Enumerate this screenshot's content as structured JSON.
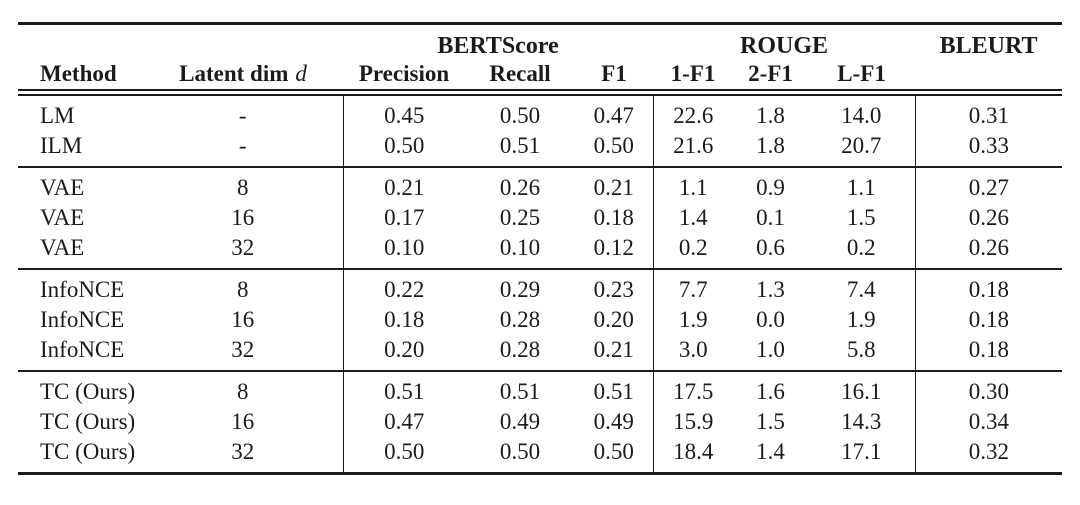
{
  "page": {
    "background": "#ffffff",
    "text_color": "#1b1b1b",
    "rule_color": "#1b1b1b"
  },
  "table": {
    "group_headers": [
      {
        "label": "",
        "span": 2
      },
      {
        "label": "BERTScore",
        "span": 3
      },
      {
        "label": "ROUGE",
        "span": 3
      },
      {
        "label": "BLEURT",
        "span": 1
      }
    ],
    "columns": [
      {
        "label": "Method"
      },
      {
        "label": "Latent dim",
        "var": "d"
      },
      {
        "label": "Precision"
      },
      {
        "label": "Recall"
      },
      {
        "label": "F1"
      },
      {
        "label": "1-F1"
      },
      {
        "label": "2-F1"
      },
      {
        "label": "L-F1"
      },
      {
        "label": ""
      }
    ],
    "groups": [
      {
        "rows": [
          [
            "LM",
            "-",
            "0.45",
            "0.50",
            "0.47",
            "22.6",
            "1.8",
            "14.0",
            "0.31"
          ],
          [
            "ILM",
            "-",
            "0.50",
            "0.51",
            "0.50",
            "21.6",
            "1.8",
            "20.7",
            "0.33"
          ]
        ]
      },
      {
        "rows": [
          [
            "VAE",
            "8",
            "0.21",
            "0.26",
            "0.21",
            "1.1",
            "0.9",
            "1.1",
            "0.27"
          ],
          [
            "VAE",
            "16",
            "0.17",
            "0.25",
            "0.18",
            "1.4",
            "0.1",
            "1.5",
            "0.26"
          ],
          [
            "VAE",
            "32",
            "0.10",
            "0.10",
            "0.12",
            "0.2",
            "0.6",
            "0.2",
            "0.26"
          ]
        ]
      },
      {
        "rows": [
          [
            "InfoNCE",
            "8",
            "0.22",
            "0.29",
            "0.23",
            "7.7",
            "1.3",
            "7.4",
            "0.18"
          ],
          [
            "InfoNCE",
            "16",
            "0.18",
            "0.28",
            "0.20",
            "1.9",
            "0.0",
            "1.9",
            "0.18"
          ],
          [
            "InfoNCE",
            "32",
            "0.20",
            "0.28",
            "0.21",
            "3.0",
            "1.0",
            "5.8",
            "0.18"
          ]
        ]
      },
      {
        "rows": [
          [
            "TC (Ours)",
            "8",
            "0.51",
            "0.51",
            "0.51",
            "17.5",
            "1.6",
            "16.1",
            "0.30"
          ],
          [
            "TC (Ours)",
            "16",
            "0.47",
            "0.49",
            "0.49",
            "15.9",
            "1.5",
            "14.3",
            "0.34"
          ],
          [
            "TC (Ours)",
            "32",
            "0.50",
            "0.50",
            "0.50",
            "18.4",
            "1.4",
            "17.1",
            "0.32"
          ]
        ]
      }
    ]
  }
}
